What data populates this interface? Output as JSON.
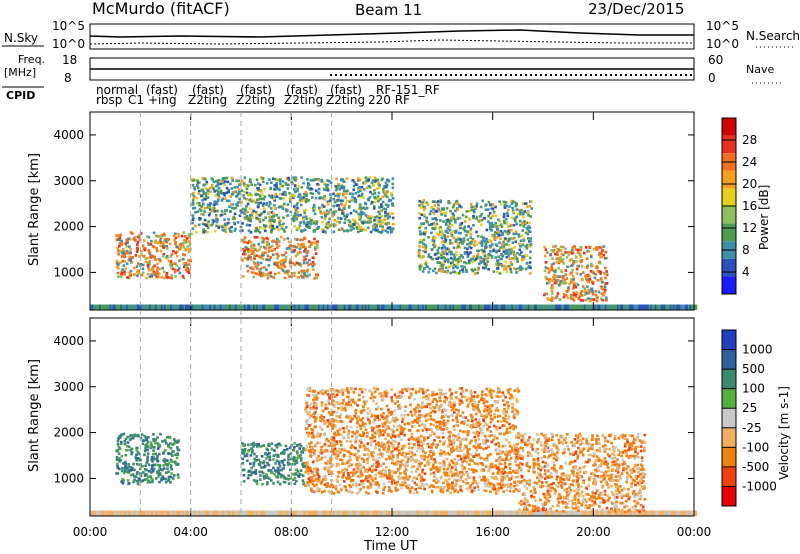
{
  "header": {
    "station": "McMurdo (fitACF)",
    "beam": "Beam 11",
    "date": "23/Dec/2015"
  },
  "summary_panels": {
    "nsky_label": "N.Sky",
    "nsky_ticks": [
      "10^5",
      "10^0"
    ],
    "nsearch_label": "N.Search",
    "nsearch_ticks": [
      "10^5",
      "10^0"
    ],
    "freq_label_1": "Freq.",
    "freq_label_2": "[MHz]",
    "freq_ticks": [
      "18",
      "8"
    ],
    "nave_label": "Nave",
    "nave_ticks": [
      "60",
      "0"
    ],
    "cpid_label": "CPID",
    "cpid_entries": [
      "normal",
      "(fast)",
      "(fast)",
      "(fast)",
      "(fast)",
      "(fast)",
      "RF-151_RF",
      "rbsp",
      "C1",
      "+ing",
      "Z2ting",
      "Z2ting",
      "Z2ting",
      "Z2ting",
      "220 RF"
    ]
  },
  "chart_data": [
    {
      "type": "heatmap",
      "title": "",
      "ylabel": "Slant Range [km]",
      "xlabel": "",
      "yticks": [
        "1000",
        "2000",
        "3000",
        "4000"
      ],
      "ylim": [
        180,
        4500
      ],
      "colorbar_label": "Power [dB]",
      "colorbar_ticks": [
        "4",
        "8",
        "12",
        "16",
        "20",
        "24",
        "28"
      ],
      "colorbar_colors": [
        "#1a1aff",
        "#2a52b8",
        "#3e8fa8",
        "#4d9c50",
        "#8fc060",
        "#e6d020",
        "#f2a020",
        "#f07020",
        "#e83020",
        "#d00000"
      ],
      "series": [
        {
          "x_start_hr": 1.0,
          "x_end_hr": 4.0,
          "range_lo_km": 900,
          "range_hi_km": 1900,
          "level": "high"
        },
        {
          "x_start_hr": 6.0,
          "x_end_hr": 9.0,
          "range_lo_km": 900,
          "range_hi_km": 1800,
          "level": "high"
        },
        {
          "x_start_hr": 4.0,
          "x_end_hr": 12.0,
          "range_lo_km": 1900,
          "range_hi_km": 3100,
          "level": "mid"
        },
        {
          "x_start_hr": 13.0,
          "x_end_hr": 17.5,
          "range_lo_km": 1000,
          "range_hi_km": 2600,
          "level": "mid"
        },
        {
          "x_start_hr": 18.0,
          "x_end_hr": 20.5,
          "range_lo_km": 400,
          "range_hi_km": 1600,
          "level": "high"
        }
      ]
    },
    {
      "type": "heatmap",
      "title": "",
      "ylabel": "Slant Range [km]",
      "xlabel": "Time UT",
      "yticks": [
        "1000",
        "2000",
        "3000",
        "4000"
      ],
      "ylim": [
        180,
        4500
      ],
      "xticks": [
        "00:00",
        "04:00",
        "08:00",
        "12:00",
        "16:00",
        "20:00",
        "00:00"
      ],
      "colorbar_label": "Velocity [m s-1]",
      "colorbar_ticks": [
        "1000",
        "500",
        "100",
        "25",
        "-25",
        "-100",
        "-500",
        "-1000"
      ],
      "colorbar_colors": [
        "#2040c0",
        "#3060a0",
        "#3a8870",
        "#55b040",
        "#c8c8c8",
        "#f0b060",
        "#f08010",
        "#f04010",
        "#e80000"
      ],
      "series": [
        {
          "x_start_hr": 1.0,
          "x_end_hr": 3.5,
          "range_lo_km": 900,
          "range_hi_km": 2000,
          "level": "toward"
        },
        {
          "x_start_hr": 6.0,
          "x_end_hr": 8.5,
          "range_lo_km": 900,
          "range_hi_km": 1800,
          "level": "toward"
        },
        {
          "x_start_hr": 8.5,
          "x_end_hr": 17.0,
          "range_lo_km": 700,
          "range_hi_km": 3000,
          "level": "away"
        },
        {
          "x_start_hr": 17.0,
          "x_end_hr": 22.0,
          "range_lo_km": 300,
          "range_hi_km": 2000,
          "level": "away"
        }
      ]
    }
  ]
}
